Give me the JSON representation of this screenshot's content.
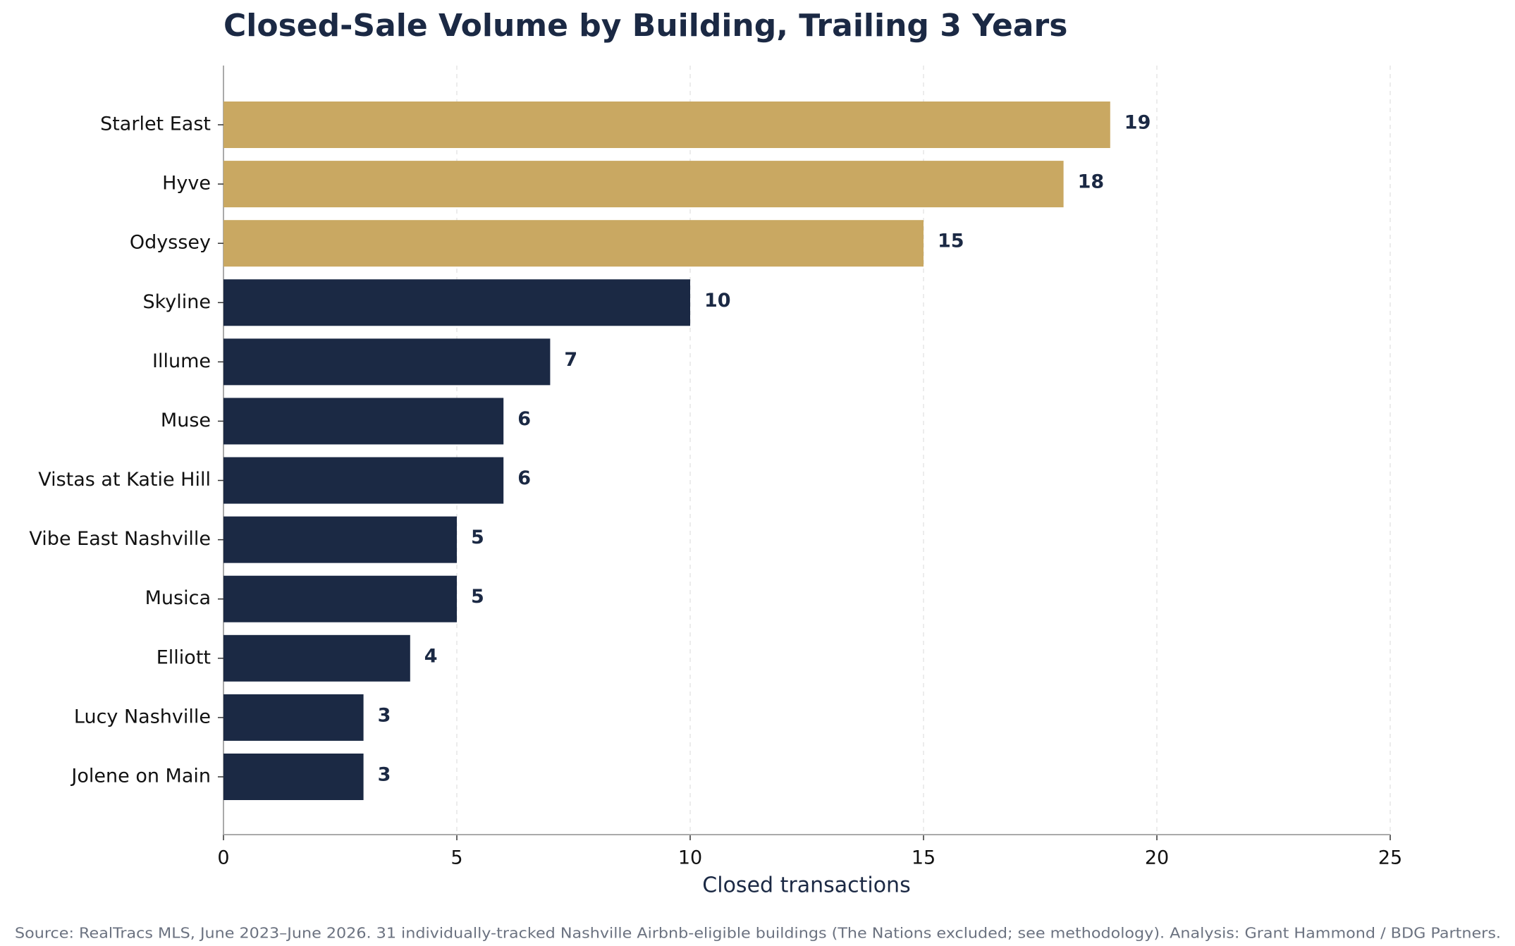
{
  "chart_data": {
    "type": "bar",
    "orientation": "horizontal",
    "title": "Closed-Sale Volume by Building, Trailing 3 Years",
    "categories": [
      "Starlet East",
      "Hyve",
      "Odyssey",
      "Skyline",
      "Illume",
      "Muse",
      "Vistas at Katie Hill",
      "Vibe East Nashville",
      "Musica",
      "Elliott",
      "Lucy Nashville",
      "Jolene on Main"
    ],
    "values": [
      19,
      18,
      15,
      10,
      7,
      6,
      6,
      5,
      5,
      4,
      3,
      3
    ],
    "colors": [
      "#c9a862",
      "#c9a862",
      "#c9a862",
      "#1b2944",
      "#1b2944",
      "#1b2944",
      "#1b2944",
      "#1b2944",
      "#1b2944",
      "#1b2944",
      "#1b2944",
      "#1b2944"
    ],
    "xlabel": "Closed transactions",
    "xlim": [
      0,
      25
    ],
    "xticks": [
      0,
      5,
      10,
      15,
      20,
      25
    ],
    "grid": true,
    "source": "Source: RealTracs MLS, June 2023–June 2026. 31 individually-tracked Nashville Airbnb-eligible buildings (The Nations excluded; see methodology). Analysis: Grant Hammond / BDG Partners."
  }
}
